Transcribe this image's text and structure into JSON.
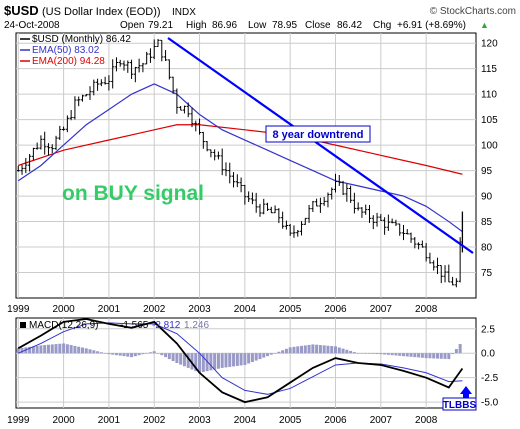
{
  "header": {
    "symbol": "$USD",
    "name": "(US Dollar Index (EOD))",
    "exchange": "INDX",
    "date": "24-Oct-2008",
    "watermark": "© StockCharts.com",
    "open_label": "Open",
    "open": "79.21",
    "high_label": "High",
    "high": "86.96",
    "low_label": "Low",
    "low": "78.95",
    "close_label": "Close",
    "close": "86.42",
    "chg_label": "Chg",
    "chg": "+6.91 (+8.69%)",
    "chg_arrow": "▲"
  },
  "colors": {
    "price": "#000000",
    "ema50": "#3333cc",
    "ema200": "#dd0000",
    "trendline": "#0000ff",
    "buy_signal": "#33cc66",
    "macd_line": "#000000",
    "signal_line": "#3333cc",
    "histogram": "#9a9ac8",
    "grid": "#cccccc"
  },
  "chart_data": [
    {
      "type": "line",
      "price_style": "ohlc-bars",
      "legend": [
        "$USD (Monthly) 86.42",
        "EMA(50) 83.02",
        "EMA(200) 94.28"
      ],
      "legend_position": "top-left",
      "x_ticks": [
        "1999",
        "2000",
        "2001",
        "2002",
        "2003",
        "2004",
        "2005",
        "2006",
        "2007",
        "2008"
      ],
      "y_ticks": [
        75,
        80,
        85,
        90,
        95,
        100,
        105,
        110,
        115,
        120
      ],
      "ylim": [
        70,
        122
      ],
      "xlim": [
        1998.95,
        2009.1
      ],
      "grid": true,
      "series": [
        {
          "name": "$USD (Monthly) 86.42",
          "x": [
            1999.0,
            1999.25,
            1999.5,
            1999.75,
            2000.0,
            2000.25,
            2000.5,
            2000.75,
            2001.0,
            2001.25,
            2001.5,
            2001.75,
            2002.0,
            2002.1,
            2002.25,
            2002.5,
            2002.75,
            2003.0,
            2003.25,
            2003.5,
            2003.75,
            2004.0,
            2004.25,
            2004.5,
            2004.75,
            2005.0,
            2005.25,
            2005.5,
            2005.75,
            2006.0,
            2006.25,
            2006.5,
            2006.75,
            2007.0,
            2007.25,
            2007.5,
            2007.75,
            2008.0,
            2008.25,
            2008.5,
            2008.67,
            2008.75,
            2008.8
          ],
          "values": [
            95,
            98,
            101,
            100,
            103,
            108,
            110,
            112,
            113,
            117,
            115,
            116,
            119,
            120,
            116,
            108,
            107,
            102,
            99,
            96,
            93,
            90,
            88,
            87,
            86,
            82,
            85,
            88,
            90,
            92,
            91,
            87,
            86,
            85,
            84,
            83,
            81,
            79,
            76,
            73,
            73,
            80,
            86.42
          ]
        },
        {
          "name": "EMA(50) 83.02",
          "x": [
            1999.0,
            1999.5,
            2000.0,
            2000.5,
            2001.0,
            2001.5,
            2002.0,
            2002.25,
            2002.5,
            2003.0,
            2003.5,
            2004.0,
            2004.5,
            2005.0,
            2005.5,
            2006.0,
            2006.5,
            2007.0,
            2007.5,
            2008.0,
            2008.5,
            2008.8
          ],
          "values": [
            93,
            96,
            100,
            104,
            107,
            110,
            112,
            111,
            110,
            106,
            103,
            101,
            99,
            97,
            95,
            93,
            92,
            91,
            90,
            88,
            85,
            83.02
          ]
        },
        {
          "name": "EMA(200) 94.28",
          "x": [
            1999.0,
            2000.0,
            2001.0,
            2001.5,
            2002.0,
            2002.5,
            2003.0,
            2004.0,
            2005.0,
            2006.0,
            2007.0,
            2008.0,
            2008.8
          ],
          "values": [
            96,
            99,
            101,
            102,
            103,
            104,
            104,
            103,
            102,
            100,
            98,
            96,
            94.28
          ]
        }
      ],
      "annotations": [
        "8 year downtrend",
        "on BUY signal"
      ]
    },
    {
      "type": "line",
      "legend": [
        "MACD(12,26,9)",
        "-1.565",
        "-2.812",
        "1.246"
      ],
      "legend_position": "top-left",
      "x_ticks": [
        "1999",
        "2000",
        "2001",
        "2002",
        "2003",
        "2004",
        "2005",
        "2006",
        "2007",
        "2008"
      ],
      "y_ticks": [
        -5.0,
        -2.5,
        0.0,
        2.5
      ],
      "ylim": [
        -5.6,
        3.6
      ],
      "xlim": [
        1998.95,
        2009.1
      ],
      "grid": true,
      "series": [
        {
          "name": "MACD(12,26,9)",
          "x": [
            1999.0,
            1999.5,
            2000.0,
            2000.5,
            2001.0,
            2001.5,
            2002.0,
            2002.5,
            2003.0,
            2003.5,
            2004.0,
            2004.5,
            2005.0,
            2005.5,
            2006.0,
            2006.5,
            2007.0,
            2007.5,
            2008.0,
            2008.5,
            2008.8
          ],
          "values": [
            0.5,
            1.8,
            3.2,
            3.5,
            3.0,
            2.6,
            3.2,
            1.0,
            -2.0,
            -4.0,
            -5.0,
            -4.5,
            -3.0,
            -1.5,
            -0.5,
            -1.0,
            -1.2,
            -1.8,
            -2.5,
            -3.5,
            -1.565
          ]
        },
        {
          "name": "Signal",
          "x": [
            1999.0,
            1999.5,
            2000.0,
            2000.5,
            2001.0,
            2001.5,
            2002.0,
            2002.5,
            2003.0,
            2003.5,
            2004.0,
            2004.5,
            2005.0,
            2005.5,
            2006.0,
            2006.5,
            2007.0,
            2007.5,
            2008.0,
            2008.5,
            2008.8
          ],
          "values": [
            0.0,
            1.0,
            2.2,
            3.0,
            3.1,
            3.0,
            3.0,
            2.0,
            0.0,
            -2.5,
            -3.8,
            -4.2,
            -3.6,
            -2.4,
            -1.2,
            -1.0,
            -1.1,
            -1.5,
            -2.0,
            -2.9,
            -2.812
          ]
        }
      ],
      "histogram": {
        "x": [
          1999.0,
          1999.5,
          2000.0,
          2000.5,
          2001.0,
          2001.5,
          2002.0,
          2002.5,
          2003.0,
          2003.5,
          2004.0,
          2004.5,
          2005.0,
          2005.5,
          2006.0,
          2006.5,
          2007.0,
          2007.5,
          2008.0,
          2008.5,
          2008.8
        ],
        "values": [
          0.5,
          0.8,
          1.0,
          0.5,
          -0.1,
          -0.4,
          0.2,
          -1.0,
          -2.0,
          -1.5,
          -1.2,
          -0.3,
          0.6,
          0.9,
          0.7,
          0.0,
          -0.1,
          -0.3,
          -0.5,
          -0.6,
          1.246
        ]
      },
      "annotations": [
        "TLBBS"
      ]
    }
  ]
}
